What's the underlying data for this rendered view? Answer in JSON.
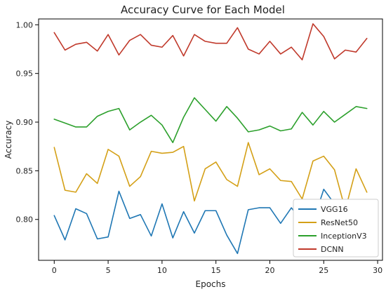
{
  "chart_data": {
    "type": "line",
    "title": "Accuracy Curve for Each Model",
    "xlabel": "Epochs",
    "ylabel": "Accuracy",
    "xlim": [
      -1.45,
      30.45
    ],
    "ylim": [
      0.758,
      1.006
    ],
    "x_ticks": [
      0,
      5,
      10,
      15,
      20,
      25,
      30
    ],
    "x_tick_labels": [
      "0",
      "5",
      "10",
      "15",
      "20",
      "25",
      "30"
    ],
    "y_ticks": [
      0.8,
      0.85,
      0.9,
      0.95,
      1.0
    ],
    "y_tick_labels": [
      "0.80",
      "0.85",
      "0.90",
      "0.95",
      "1.00"
    ],
    "grid": false,
    "legend_position": "bottom-right",
    "x": [
      0,
      1,
      2,
      3,
      4,
      5,
      6,
      7,
      8,
      9,
      10,
      11,
      12,
      13,
      14,
      15,
      16,
      17,
      18,
      19,
      20,
      21,
      22,
      23,
      24,
      25,
      26,
      27,
      28,
      29
    ],
    "series": [
      {
        "name": "VGG16",
        "color": "#1f77b4",
        "values": [
          0.804,
          0.779,
          0.811,
          0.806,
          0.78,
          0.782,
          0.829,
          0.801,
          0.805,
          0.783,
          0.816,
          0.781,
          0.808,
          0.786,
          0.809,
          0.809,
          0.784,
          0.765,
          0.81,
          0.812,
          0.812,
          0.796,
          0.812,
          0.798,
          0.797,
          0.831,
          0.816,
          0.812,
          0.8,
          0.811
        ]
      },
      {
        "name": "ResNet50",
        "color": "#d4a017",
        "values": [
          0.874,
          0.83,
          0.828,
          0.847,
          0.837,
          0.872,
          0.865,
          0.834,
          0.844,
          0.87,
          0.868,
          0.869,
          0.875,
          0.819,
          0.852,
          0.859,
          0.841,
          0.834,
          0.879,
          0.846,
          0.852,
          0.84,
          0.839,
          0.821,
          0.86,
          0.865,
          0.851,
          0.81,
          0.852,
          0.828
        ]
      },
      {
        "name": "InceptionV3",
        "color": "#2ca02c",
        "values": [
          0.903,
          0.899,
          0.895,
          0.895,
          0.906,
          0.911,
          0.914,
          0.892,
          0.9,
          0.907,
          0.897,
          0.879,
          0.905,
          0.925,
          0.913,
          0.901,
          0.916,
          0.904,
          0.89,
          0.892,
          0.896,
          0.891,
          0.893,
          0.91,
          0.897,
          0.911,
          0.9,
          0.908,
          0.916,
          0.914
        ]
      },
      {
        "name": "DCNN",
        "color": "#c0392b",
        "values": [
          0.992,
          0.974,
          0.98,
          0.982,
          0.973,
          0.99,
          0.969,
          0.984,
          0.99,
          0.979,
          0.977,
          0.989,
          0.968,
          0.99,
          0.983,
          0.981,
          0.981,
          0.997,
          0.975,
          0.97,
          0.983,
          0.97,
          0.977,
          0.964,
          1.001,
          0.988,
          0.965,
          0.974,
          0.972,
          0.986
        ]
      }
    ]
  }
}
